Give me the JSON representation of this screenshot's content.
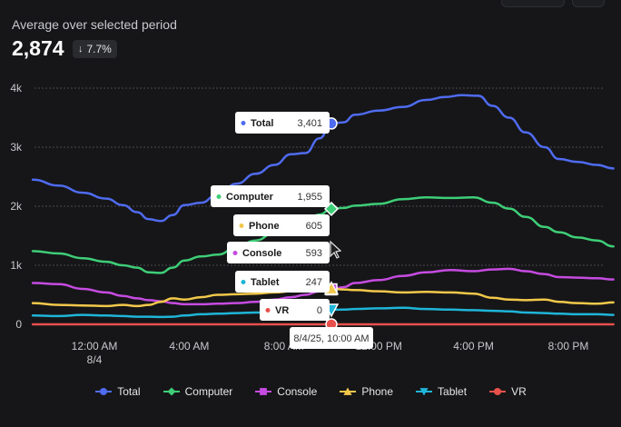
{
  "summary": {
    "label": "Average over selected period",
    "value": "2,874",
    "delta": "7.7%",
    "delta_direction": "down"
  },
  "chart_data": {
    "type": "line",
    "y_ticks": [
      0,
      1000,
      2000,
      3000,
      4000
    ],
    "y_tick_labels": [
      "0",
      "1k",
      "2k",
      "3k",
      "4k"
    ],
    "ylim": [
      0,
      4000
    ],
    "x_domain_hours": [
      -11,
      35
    ],
    "x_ticks": [
      {
        "hour": 0,
        "label": "12:00 AM",
        "sublabel": "8/4"
      },
      {
        "hour": 4,
        "label": "4:00 AM",
        "sublabel": ""
      },
      {
        "hour": 8,
        "label": "8:00 AM",
        "sublabel": ""
      },
      {
        "hour": 12,
        "label": "12:00 PM",
        "sublabel": ""
      },
      {
        "hour": 16,
        "label": "4:00 PM",
        "sublabel": ""
      },
      {
        "hour": 20,
        "label": "8:00 PM",
        "sublabel": ""
      }
    ],
    "grid": true,
    "hover": {
      "hour": 10,
      "label": "8/4/25, 10:00 AM"
    },
    "series": [
      {
        "name": "Total",
        "color": "#4f6bf0",
        "marker": "circle",
        "hover_value": "3,401",
        "points": [
          [
            -2.6,
            2450
          ],
          [
            -1.5,
            2350
          ],
          [
            -0.5,
            2230
          ],
          [
            0.5,
            2130
          ],
          [
            1.2,
            2020
          ],
          [
            1.8,
            1900
          ],
          [
            2.3,
            1780
          ],
          [
            2.8,
            1750
          ],
          [
            3.3,
            1850
          ],
          [
            3.8,
            2020
          ],
          [
            4.5,
            2060
          ],
          [
            5.2,
            2200
          ],
          [
            6,
            2380
          ],
          [
            6.8,
            2550
          ],
          [
            7.6,
            2700
          ],
          [
            8.3,
            2880
          ],
          [
            8.9,
            2900
          ],
          [
            9.5,
            3150
          ],
          [
            10,
            3401
          ],
          [
            10.5,
            3420
          ],
          [
            11,
            3550
          ],
          [
            12,
            3620
          ],
          [
            13,
            3680
          ],
          [
            14,
            3800
          ],
          [
            14.8,
            3850
          ],
          [
            15.5,
            3880
          ],
          [
            16.2,
            3870
          ],
          [
            16.8,
            3700
          ],
          [
            17.5,
            3500
          ],
          [
            18.2,
            3250
          ],
          [
            19,
            3000
          ],
          [
            19.6,
            2800
          ],
          [
            20.4,
            2750
          ],
          [
            21.2,
            2700
          ],
          [
            21.9,
            2640
          ]
        ]
      },
      {
        "name": "Computer",
        "color": "#3fce78",
        "marker": "diamond",
        "hover_value": "1,955",
        "points": [
          [
            -2.6,
            1240
          ],
          [
            -1.5,
            1200
          ],
          [
            -0.5,
            1120
          ],
          [
            0.5,
            1060
          ],
          [
            1.2,
            1000
          ],
          [
            1.8,
            960
          ],
          [
            2.3,
            880
          ],
          [
            2.8,
            870
          ],
          [
            3.3,
            960
          ],
          [
            3.8,
            1080
          ],
          [
            4.5,
            1150
          ],
          [
            5.2,
            1180
          ],
          [
            6,
            1300
          ],
          [
            6.8,
            1420
          ],
          [
            7.6,
            1550
          ],
          [
            8.3,
            1650
          ],
          [
            8.9,
            1750
          ],
          [
            9.5,
            1860
          ],
          [
            10,
            1955
          ],
          [
            10.5,
            1970
          ],
          [
            11,
            2010
          ],
          [
            12,
            2040
          ],
          [
            13,
            2120
          ],
          [
            14,
            2150
          ],
          [
            15,
            2140
          ],
          [
            16,
            2150
          ],
          [
            16.8,
            2060
          ],
          [
            17.5,
            1960
          ],
          [
            18.2,
            1820
          ],
          [
            19,
            1650
          ],
          [
            19.6,
            1560
          ],
          [
            20.4,
            1470
          ],
          [
            21.2,
            1420
          ],
          [
            21.9,
            1320
          ]
        ]
      },
      {
        "name": "Console",
        "color": "#c64be0",
        "marker": "square",
        "hover_value": "593",
        "points": [
          [
            -2.6,
            700
          ],
          [
            -1.5,
            680
          ],
          [
            -0.5,
            600
          ],
          [
            0.5,
            540
          ],
          [
            1.2,
            480
          ],
          [
            1.8,
            440
          ],
          [
            2.3,
            410
          ],
          [
            2.8,
            390
          ],
          [
            3.3,
            360
          ],
          [
            3.8,
            340
          ],
          [
            4.5,
            340
          ],
          [
            5.2,
            350
          ],
          [
            6,
            360
          ],
          [
            6.8,
            380
          ],
          [
            7.6,
            420
          ],
          [
            8.3,
            460
          ],
          [
            8.9,
            500
          ],
          [
            9.5,
            560
          ],
          [
            10,
            593
          ],
          [
            10.5,
            630
          ],
          [
            11,
            700
          ],
          [
            12,
            750
          ],
          [
            13,
            820
          ],
          [
            14,
            880
          ],
          [
            15,
            920
          ],
          [
            16,
            900
          ],
          [
            16.8,
            930
          ],
          [
            17.5,
            940
          ],
          [
            18.2,
            900
          ],
          [
            19,
            850
          ],
          [
            19.6,
            800
          ],
          [
            20.4,
            790
          ],
          [
            21.2,
            780
          ],
          [
            21.9,
            760
          ]
        ]
      },
      {
        "name": "Phone",
        "color": "#f2c84b",
        "marker": "triangle-up",
        "hover_value": "605",
        "points": [
          [
            -2.6,
            360
          ],
          [
            -1.5,
            330
          ],
          [
            -0.5,
            320
          ],
          [
            0.5,
            310
          ],
          [
            1.2,
            330
          ],
          [
            1.8,
            310
          ],
          [
            2.3,
            330
          ],
          [
            2.8,
            380
          ],
          [
            3.3,
            440
          ],
          [
            3.8,
            420
          ],
          [
            4.5,
            460
          ],
          [
            5.2,
            500
          ],
          [
            6,
            510
          ],
          [
            6.8,
            520
          ],
          [
            7.6,
            540
          ],
          [
            8.3,
            560
          ],
          [
            8.9,
            580
          ],
          [
            9.5,
            600
          ],
          [
            10,
            605
          ],
          [
            10.5,
            590
          ],
          [
            11,
            580
          ],
          [
            12,
            560
          ],
          [
            13,
            540
          ],
          [
            14,
            550
          ],
          [
            15,
            540
          ],
          [
            16,
            520
          ],
          [
            16.8,
            450
          ],
          [
            17.5,
            420
          ],
          [
            18.2,
            410
          ],
          [
            19,
            420
          ],
          [
            19.6,
            380
          ],
          [
            20.4,
            360
          ],
          [
            21.2,
            350
          ],
          [
            21.9,
            370
          ]
        ]
      },
      {
        "name": "Tablet",
        "color": "#1fb5d8",
        "marker": "triangle-down",
        "hover_value": "247",
        "points": [
          [
            -2.6,
            150
          ],
          [
            -1.5,
            140
          ],
          [
            -0.5,
            160
          ],
          [
            0.5,
            150
          ],
          [
            1.2,
            140
          ],
          [
            1.8,
            130
          ],
          [
            2.3,
            130
          ],
          [
            2.8,
            125
          ],
          [
            3.3,
            130
          ],
          [
            3.8,
            150
          ],
          [
            4.5,
            170
          ],
          [
            5.2,
            180
          ],
          [
            6,
            190
          ],
          [
            6.8,
            200
          ],
          [
            7.6,
            210
          ],
          [
            8.3,
            220
          ],
          [
            8.9,
            230
          ],
          [
            9.5,
            240
          ],
          [
            10,
            247
          ],
          [
            10.5,
            250
          ],
          [
            11,
            260
          ],
          [
            12,
            270
          ],
          [
            13,
            280
          ],
          [
            14,
            260
          ],
          [
            15,
            250
          ],
          [
            16,
            240
          ],
          [
            16.8,
            230
          ],
          [
            17.5,
            220
          ],
          [
            18.2,
            200
          ],
          [
            19,
            190
          ],
          [
            19.6,
            180
          ],
          [
            20.4,
            170
          ],
          [
            21.2,
            170
          ],
          [
            21.9,
            160
          ]
        ]
      },
      {
        "name": "VR",
        "color": "#e8504b",
        "marker": "circle",
        "hover_value": "0",
        "points": [
          [
            -2.6,
            0
          ],
          [
            21.9,
            0
          ]
        ]
      }
    ]
  }
}
